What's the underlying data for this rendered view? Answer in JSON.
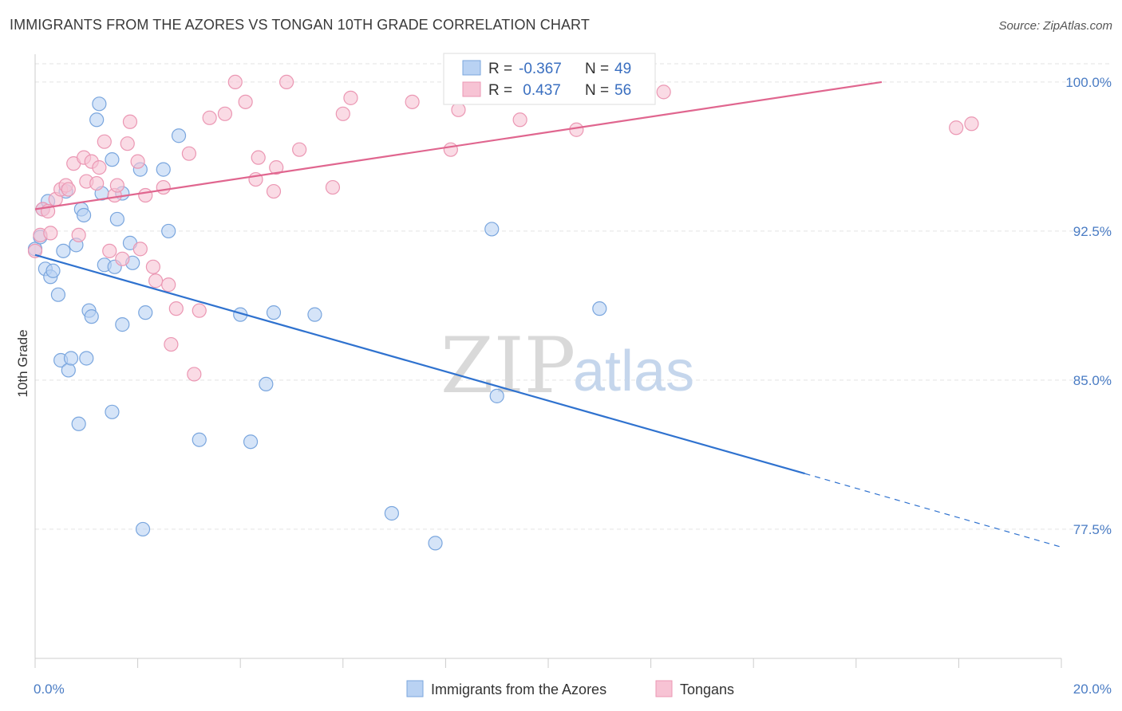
{
  "header": {
    "title": "IMMIGRANTS FROM THE AZORES VS TONGAN 10TH GRADE CORRELATION CHART",
    "source": "Source: ZipAtlas.com"
  },
  "watermark": {
    "zip": "ZIP",
    "atlas": "atlas"
  },
  "legend_top": {
    "rows": [
      {
        "r_label": "R =",
        "r_value": "-0.367",
        "n_label": "N =",
        "n_value": "49"
      },
      {
        "r_label": "R =",
        "r_value": " 0.437",
        "n_label": "N =",
        "n_value": "56"
      }
    ]
  },
  "legend_bottom": {
    "items": [
      "Immigrants from the Azores",
      "Tongans"
    ]
  },
  "colors": {
    "blue_fill": "#b9d2f3",
    "blue_stroke": "#7aa6de",
    "blue_line": "#2f72cf",
    "pink_fill": "#f7c3d4",
    "pink_stroke": "#eb97b3",
    "pink_line": "#e0668f",
    "grid": "#e3e3e3",
    "axis": "#cccccc"
  },
  "chart_data": {
    "type": "scatter",
    "title": "IMMIGRANTS FROM THE AZORES VS TONGAN 10TH GRADE CORRELATION CHART",
    "xlabel": "",
    "ylabel": "10th Grade",
    "xlim": [
      0,
      20
    ],
    "ylim": [
      71.0,
      101.4
    ],
    "x_tick_labels": [
      "0.0%",
      "20.0%"
    ],
    "y_ticks": [
      77.5,
      85.0,
      92.5,
      100.0
    ],
    "y_tick_labels": [
      "77.5%",
      "85.0%",
      "92.5%",
      "100.0%"
    ],
    "grid": true,
    "legend_position": "top-center",
    "series": [
      {
        "name": "Immigrants from the Azores",
        "color": "#7aa6de",
        "points": [
          [
            0.0,
            91.6
          ],
          [
            0.1,
            92.2
          ],
          [
            0.15,
            93.6
          ],
          [
            0.2,
            90.6
          ],
          [
            0.25,
            94.0
          ],
          [
            0.3,
            90.2
          ],
          [
            0.35,
            90.5
          ],
          [
            0.45,
            89.3
          ],
          [
            0.5,
            86.0
          ],
          [
            0.55,
            91.5
          ],
          [
            0.6,
            94.5
          ],
          [
            0.65,
            85.5
          ],
          [
            0.7,
            86.1
          ],
          [
            0.8,
            91.8
          ],
          [
            0.85,
            82.8
          ],
          [
            0.9,
            93.6
          ],
          [
            0.95,
            93.3
          ],
          [
            1.0,
            86.1
          ],
          [
            1.05,
            88.5
          ],
          [
            1.1,
            88.2
          ],
          [
            1.2,
            98.1
          ],
          [
            1.25,
            98.9
          ],
          [
            1.3,
            94.4
          ],
          [
            1.35,
            90.8
          ],
          [
            1.5,
            83.4
          ],
          [
            1.5,
            96.1
          ],
          [
            1.55,
            90.7
          ],
          [
            1.6,
            93.1
          ],
          [
            1.7,
            87.8
          ],
          [
            1.7,
            94.4
          ],
          [
            1.85,
            91.9
          ],
          [
            1.9,
            90.9
          ],
          [
            2.05,
            95.6
          ],
          [
            2.1,
            77.5
          ],
          [
            2.15,
            88.4
          ],
          [
            2.5,
            95.6
          ],
          [
            2.6,
            92.5
          ],
          [
            2.8,
            97.3
          ],
          [
            3.2,
            82.0
          ],
          [
            4.0,
            88.3
          ],
          [
            4.2,
            81.9
          ],
          [
            4.5,
            84.8
          ],
          [
            4.65,
            88.4
          ],
          [
            5.45,
            88.3
          ],
          [
            6.95,
            78.3
          ],
          [
            7.8,
            76.8
          ],
          [
            8.9,
            92.6
          ],
          [
            9.0,
            84.2
          ],
          [
            11.0,
            88.6
          ]
        ],
        "trend": {
          "from": [
            0.0,
            91.3
          ],
          "to": [
            15.0,
            80.3
          ],
          "dashed_to": [
            20.0,
            76.6
          ]
        }
      },
      {
        "name": "Tongans",
        "color": "#eb97b3",
        "points": [
          [
            0.0,
            91.5
          ],
          [
            0.1,
            92.3
          ],
          [
            0.15,
            93.6
          ],
          [
            0.25,
            93.5
          ],
          [
            0.3,
            92.4
          ],
          [
            0.4,
            94.1
          ],
          [
            0.5,
            94.6
          ],
          [
            0.6,
            94.8
          ],
          [
            0.65,
            94.6
          ],
          [
            0.75,
            95.9
          ],
          [
            0.85,
            92.3
          ],
          [
            0.95,
            96.2
          ],
          [
            1.0,
            95.0
          ],
          [
            1.1,
            96.0
          ],
          [
            1.2,
            94.9
          ],
          [
            1.25,
            95.7
          ],
          [
            1.35,
            97.0
          ],
          [
            1.45,
            91.5
          ],
          [
            1.55,
            94.3
          ],
          [
            1.6,
            94.8
          ],
          [
            1.7,
            91.1
          ],
          [
            1.8,
            96.9
          ],
          [
            1.85,
            98.0
          ],
          [
            2.0,
            96.0
          ],
          [
            2.05,
            91.6
          ],
          [
            2.15,
            94.3
          ],
          [
            2.3,
            90.7
          ],
          [
            2.35,
            90.0
          ],
          [
            2.5,
            94.7
          ],
          [
            2.6,
            89.8
          ],
          [
            2.65,
            86.8
          ],
          [
            2.75,
            88.6
          ],
          [
            3.0,
            96.4
          ],
          [
            3.1,
            85.3
          ],
          [
            3.2,
            88.5
          ],
          [
            3.4,
            98.2
          ],
          [
            3.7,
            98.4
          ],
          [
            3.9,
            100.0
          ],
          [
            4.1,
            99.0
          ],
          [
            4.3,
            95.1
          ],
          [
            4.35,
            96.2
          ],
          [
            4.65,
            94.5
          ],
          [
            4.7,
            95.7
          ],
          [
            4.9,
            100.0
          ],
          [
            5.15,
            96.6
          ],
          [
            5.8,
            94.7
          ],
          [
            6.0,
            98.4
          ],
          [
            6.15,
            99.2
          ],
          [
            7.35,
            99.0
          ],
          [
            8.1,
            96.6
          ],
          [
            8.25,
            98.6
          ],
          [
            9.45,
            98.1
          ],
          [
            10.55,
            97.6
          ],
          [
            12.25,
            99.5
          ],
          [
            17.95,
            97.7
          ],
          [
            18.25,
            97.9
          ]
        ],
        "trend": {
          "from": [
            0.0,
            93.6
          ],
          "to": [
            16.5,
            100.0
          ]
        }
      }
    ]
  }
}
